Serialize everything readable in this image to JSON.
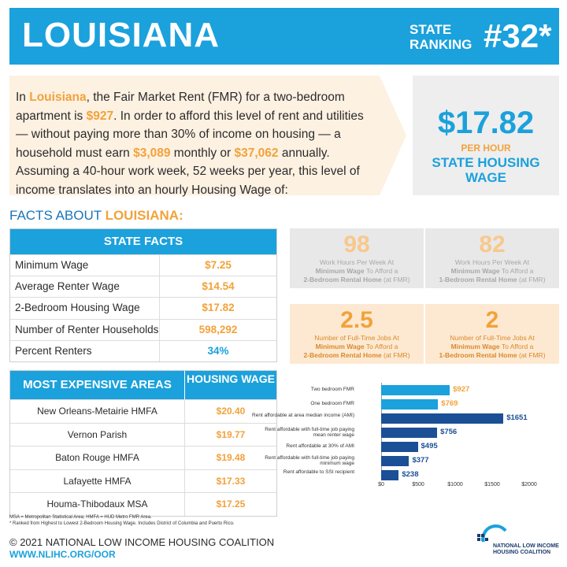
{
  "header": {
    "state": "LOUISIANA",
    "ranking_label": "STATE RANKING",
    "ranking": "#32*"
  },
  "intro": {
    "p1": "In ",
    "state": "Louisiana",
    "p2": ", the Fair Market Rent (FMR) for a two-bedroom apartment is ",
    "fmr": "$927",
    "p3": ". In order to afford this level of rent and utilities — without paying more than 30% of income on housing — a household must earn ",
    "monthly": "$3,089",
    "p4": " monthly or ",
    "annual": "$37,062",
    "p5": " annually. Assuming a 40-hour work week, 52 weeks per year, this level of income translates into an hourly Housing Wage of:"
  },
  "housing_wage": {
    "amount": "$17.82",
    "per": "PER HOUR",
    "label": "STATE HOUSING WAGE"
  },
  "facts_title": {
    "prefix": "FACTS ABOUT ",
    "state": "LOUISIANA:"
  },
  "state_facts": {
    "header": "STATE FACTS",
    "rows": [
      {
        "k": "Minimum Wage",
        "v": "$7.25"
      },
      {
        "k": "Average Renter Wage",
        "v": "$14.54"
      },
      {
        "k": "2-Bedroom Housing Wage",
        "v": "$17.82"
      },
      {
        "k": "Number of Renter Households",
        "v": "598,292"
      },
      {
        "k": "Percent Renters",
        "v": "34%"
      }
    ]
  },
  "areas": {
    "header_k": "MOST EXPENSIVE AREAS",
    "header_v": "HOUSING WAGE",
    "rows": [
      {
        "k": "New Orleans-Metairie HMFA",
        "v": "$20.40"
      },
      {
        "k": "Vernon Parish",
        "v": "$19.77"
      },
      {
        "k": "Baton Rouge HMFA",
        "v": "$19.48"
      },
      {
        "k": "Lafayette HMFA",
        "v": "$17.33"
      },
      {
        "k": "Houma-Thibodaux MSA",
        "v": "$17.25"
      }
    ]
  },
  "footnote": {
    "l1": "MSA = Metropolitan Statistical Area; HMFA = HUD Metro FMR Area.",
    "l2": "* Ranked from Highest to Lowest 2-Bedroom Housing Wage. Includes District of Columbia and Puerto Rico."
  },
  "cards": [
    {
      "num": "98",
      "l1": "Work Hours Per Week At",
      "b": "Minimum Wage",
      "l2": " To Afford a",
      "b2": "2-Bedroom Rental Home",
      "l3": " (at FMR)"
    },
    {
      "num": "82",
      "l1": "Work Hours Per Week At",
      "b": "Minimum Wage",
      "l2": " To Afford a",
      "b2": "1-Bedroom Rental Home",
      "l3": " (at FMR)"
    },
    {
      "num": "2.5",
      "l1": "Number of Full-Time Jobs At",
      "b": "Minimum Wage",
      "l2": " To Afford a",
      "b2": "2-Bedroom Rental Home",
      "l3": " (at FMR)"
    },
    {
      "num": "2",
      "l1": "Number of Full-Time Jobs At",
      "b": "Minimum Wage",
      "l2": " To Afford a",
      "b2": "1-Bedroom Rental Home",
      "l3": " (at FMR)"
    }
  ],
  "chart_data": {
    "type": "bar",
    "orientation": "horizontal",
    "categories": [
      "Two bedroom FMR",
      "One bedroom FMR",
      "Rent affordable at area median income (AMI)",
      "Rent affordable with full-time job paying mean renter wage",
      "Rent affordable at 30% of AMI",
      "Rent affordable with full-time job paying minimum wage",
      "Rent affordable to SSI recipient"
    ],
    "values": [
      927,
      769,
      1651,
      756,
      495,
      377,
      238
    ],
    "value_labels": [
      "$927",
      "$769",
      "$1651",
      "$756",
      "$495",
      "$377",
      "$238"
    ],
    "colors": [
      "#1ba1dc",
      "#1ba1dc",
      "#1b4f96",
      "#1b4f96",
      "#1b4f96",
      "#1b4f96",
      "#1b4f96"
    ],
    "value_label_colors": [
      "#f2a23a",
      "#f2a23a",
      "#1b4f96",
      "#1b4f96",
      "#1b4f96",
      "#1b4f96",
      "#1b4f96"
    ],
    "ticks": [
      "$0",
      "$500",
      "$1000",
      "$1500",
      "$2000"
    ],
    "xlim": [
      0,
      2000
    ]
  },
  "footer": {
    "copyright": "© 2021 NATIONAL LOW INCOME HOUSING COALITION",
    "site": "WWW.NLIHC.ORG/OOR",
    "logo_l1": "NATIONAL LOW INCOME",
    "logo_l2": "HOUSING COALITION"
  }
}
